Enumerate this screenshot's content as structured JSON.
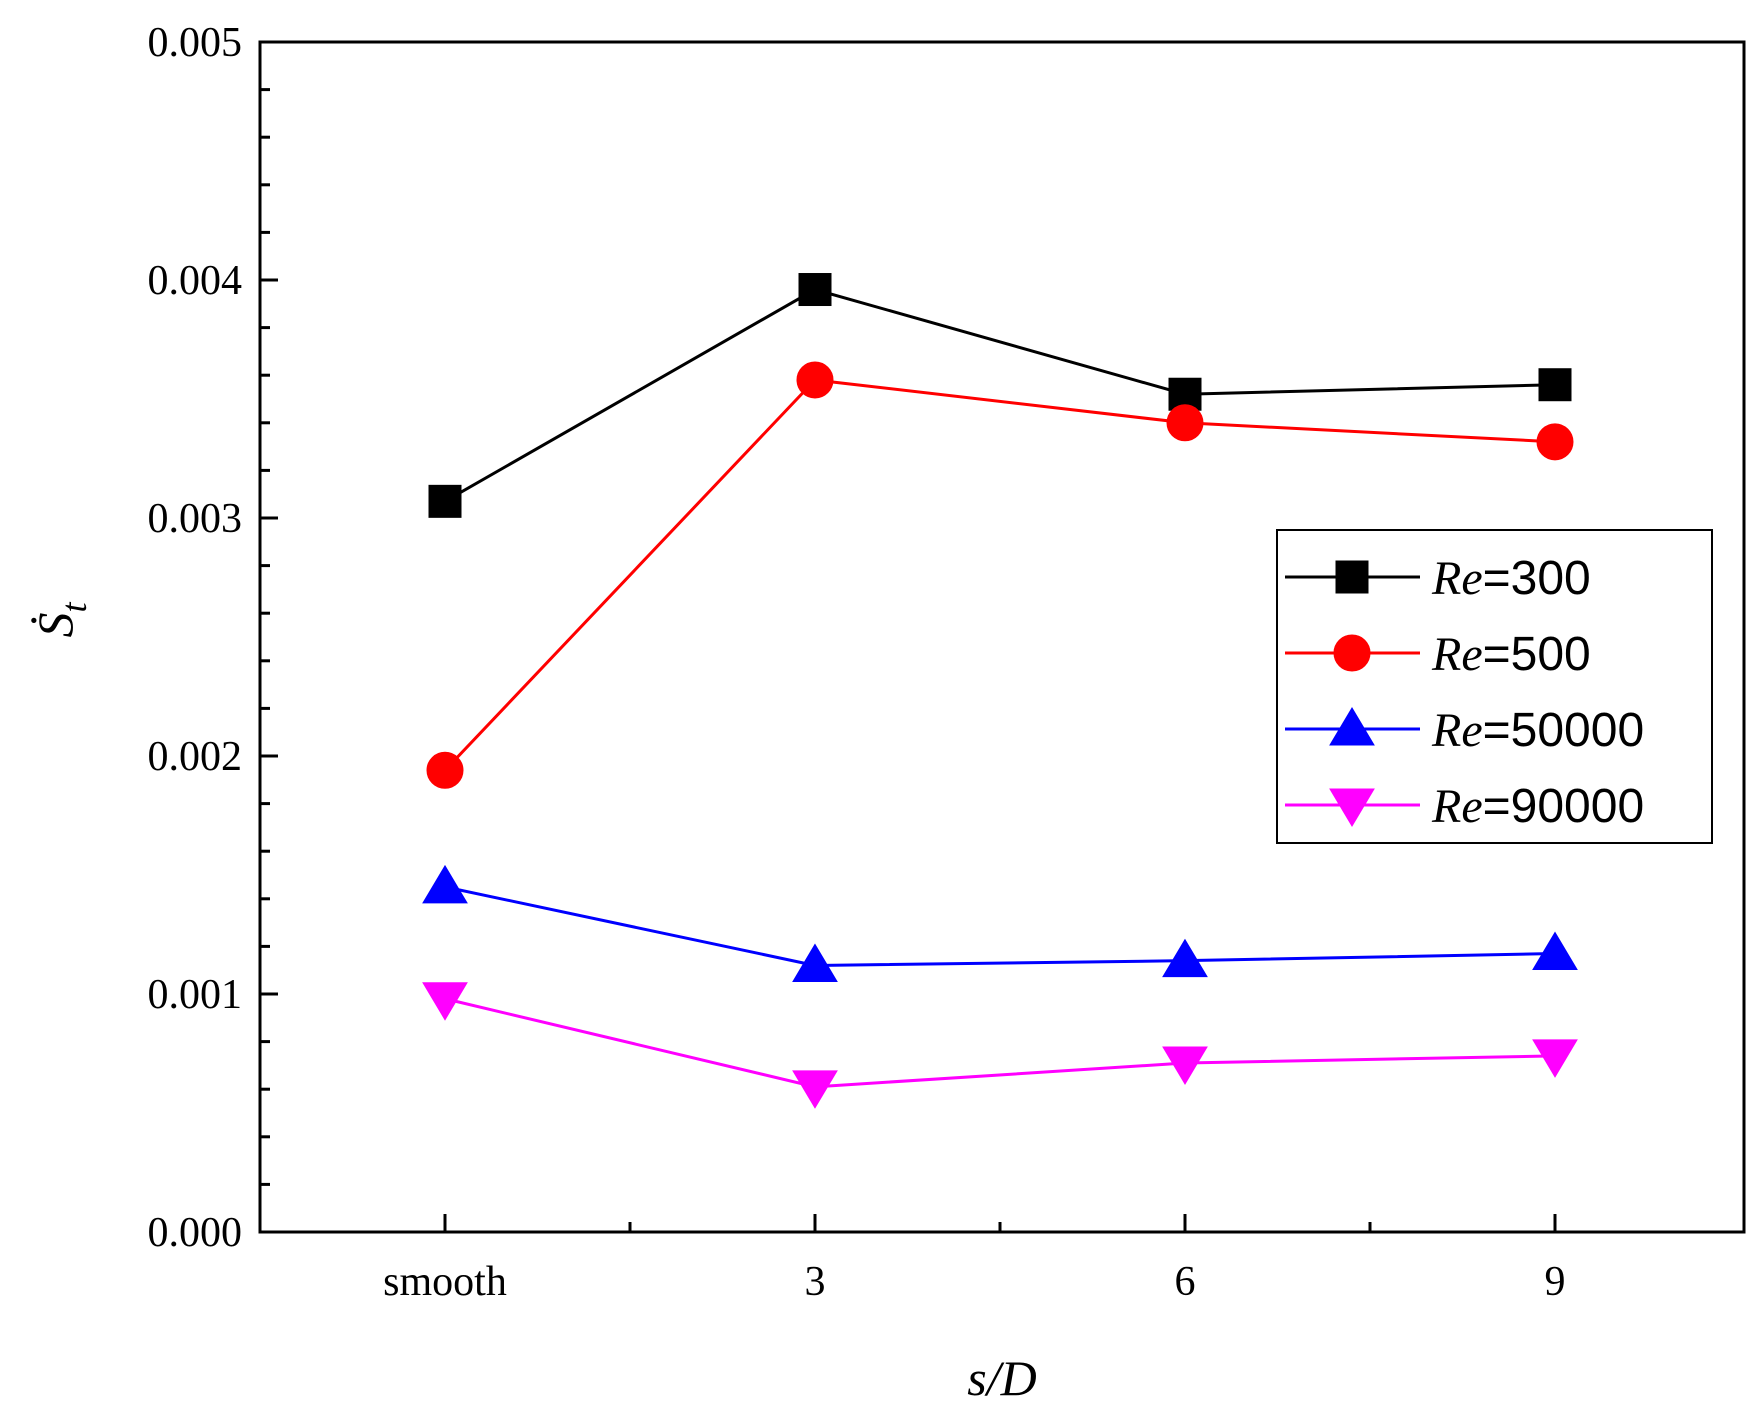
{
  "chart_data": {
    "type": "line",
    "title": "",
    "xlabel": "s/D",
    "ylabel": "Ṡ",
    "ylabel_subscript": "t",
    "categories": [
      "smooth",
      "3",
      "6",
      "9"
    ],
    "ylim": [
      0,
      0.005
    ],
    "yticks": [
      "0.000",
      "0.001",
      "0.002",
      "0.003",
      "0.004",
      "0.005"
    ],
    "ytick_values": [
      0,
      0.001,
      0.002,
      0.003,
      0.004,
      0.005
    ],
    "legend_position": "right",
    "series": [
      {
        "name_prefix": "Re",
        "name_suffix": "=300",
        "marker": "square",
        "color": "#000000",
        "values": [
          0.00307,
          0.00396,
          0.00352,
          0.00356
        ]
      },
      {
        "name_prefix": "Re",
        "name_suffix": "=500",
        "marker": "circle",
        "color": "#ff0000",
        "values": [
          0.00194,
          0.00358,
          0.0034,
          0.00332
        ]
      },
      {
        "name_prefix": "Re",
        "name_suffix": "=50000",
        "marker": "triangle-up",
        "color": "#0000ff",
        "values": [
          0.00145,
          0.00112,
          0.00114,
          0.00117
        ]
      },
      {
        "name_prefix": "Re",
        "name_suffix": "=90000",
        "marker": "triangle-down",
        "color": "#ff00ff",
        "values": [
          0.00098,
          0.00061,
          0.00071,
          0.00074
        ]
      }
    ]
  }
}
